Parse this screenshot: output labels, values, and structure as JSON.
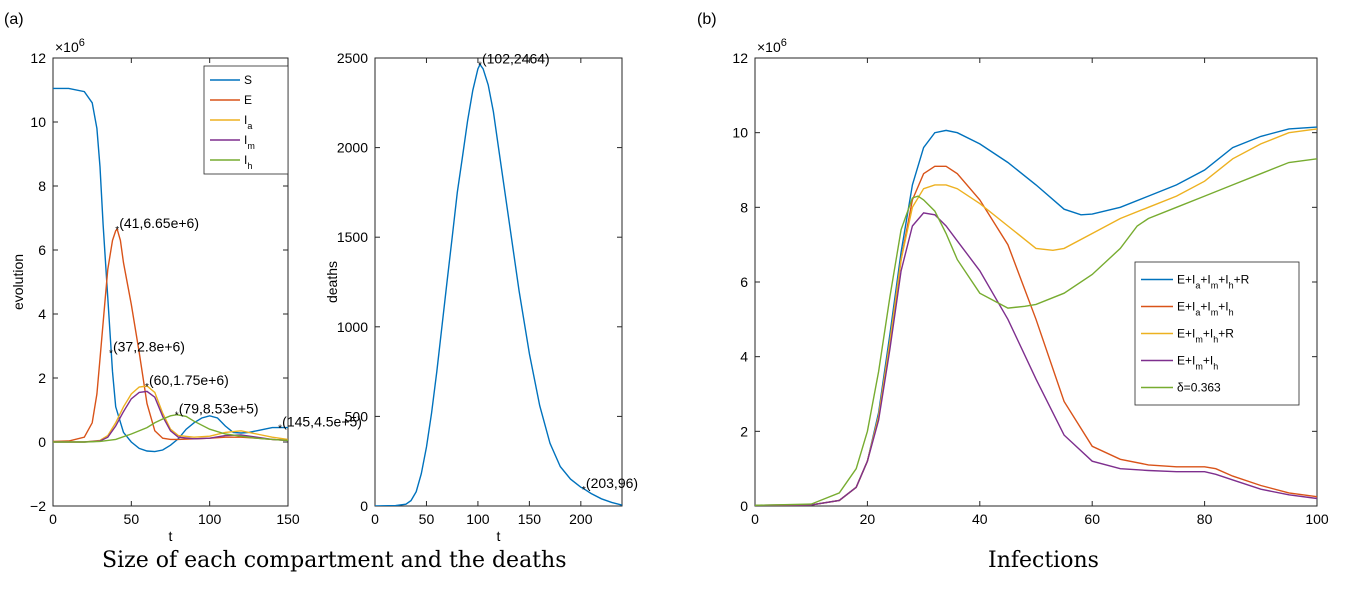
{
  "panel_labels": {
    "a": "(a)",
    "b": "(b)"
  },
  "captions": {
    "a": "Size of each compartment and the deaths",
    "b": "Infections"
  },
  "chart_data": [
    {
      "id": "compartments",
      "type": "line",
      "xlabel": "t",
      "ylabel": "evolution",
      "exponent_label": "×10",
      "exponent_power": "6",
      "xlim": [
        0,
        150
      ],
      "ylim": [
        -2,
        12
      ],
      "xticks": [
        "0",
        "50",
        "100",
        "150"
      ],
      "yticks": [
        "-2",
        "0",
        "2",
        "4",
        "6",
        "8",
        "10",
        "12"
      ],
      "legend_position": "top-right",
      "series": [
        {
          "name": "S",
          "color": "#0072BD",
          "x": [
            0,
            10,
            20,
            25,
            28,
            30,
            32,
            35,
            38,
            40,
            45,
            50,
            55,
            60,
            65,
            70,
            75,
            80,
            85,
            90,
            95,
            100,
            105,
            110,
            115,
            120,
            125,
            130,
            135,
            140,
            145,
            150
          ],
          "y": [
            11.05,
            11.05,
            10.95,
            10.6,
            9.8,
            8.6,
            6.8,
            4.5,
            2.2,
            1.1,
            0.3,
            0.0,
            -0.2,
            -0.28,
            -0.3,
            -0.25,
            -0.1,
            0.1,
            0.4,
            0.6,
            0.75,
            0.82,
            0.75,
            0.5,
            0.3,
            0.28,
            0.3,
            0.35,
            0.4,
            0.45,
            0.45,
            0.45
          ]
        },
        {
          "name": "E",
          "color": "#D95319",
          "x": [
            0,
            10,
            20,
            25,
            28,
            30,
            33,
            35,
            38,
            40,
            41,
            43,
            45,
            50,
            55,
            60,
            65,
            70,
            75,
            80,
            90,
            100,
            110,
            120,
            130,
            140,
            150
          ],
          "y": [
            0.02,
            0.03,
            0.15,
            0.6,
            1.5,
            2.6,
            4.3,
            5.4,
            6.3,
            6.6,
            6.65,
            6.3,
            5.6,
            4.3,
            2.8,
            1.2,
            0.35,
            0.12,
            0.08,
            0.08,
            0.1,
            0.12,
            0.15,
            0.15,
            0.12,
            0.08,
            0.05
          ]
        },
        {
          "name": "I_a",
          "color": "#EDB120",
          "x": [
            0,
            20,
            30,
            35,
            40,
            45,
            50,
            55,
            60,
            65,
            70,
            75,
            80,
            90,
            100,
            110,
            120,
            130,
            140,
            150
          ],
          "y": [
            0.0,
            0.0,
            0.05,
            0.2,
            0.6,
            1.1,
            1.5,
            1.72,
            1.75,
            1.55,
            0.9,
            0.4,
            0.2,
            0.15,
            0.18,
            0.3,
            0.35,
            0.25,
            0.15,
            0.08
          ]
        },
        {
          "name": "I_m",
          "color": "#7E2F8E",
          "x": [
            0,
            20,
            30,
            35,
            40,
            45,
            50,
            55,
            60,
            65,
            70,
            75,
            80,
            90,
            100,
            110,
            120,
            130,
            140,
            150
          ],
          "y": [
            0.0,
            0.0,
            0.03,
            0.15,
            0.5,
            0.95,
            1.35,
            1.55,
            1.58,
            1.4,
            0.8,
            0.35,
            0.15,
            0.1,
            0.12,
            0.2,
            0.22,
            0.15,
            0.08,
            0.05
          ]
        },
        {
          "name": "I_h",
          "color": "#77AC30",
          "x": [
            0,
            20,
            30,
            40,
            50,
            60,
            65,
            70,
            75,
            79,
            85,
            90,
            100,
            110,
            120,
            130,
            140,
            150
          ],
          "y": [
            0.0,
            0.0,
            0.02,
            0.08,
            0.25,
            0.45,
            0.6,
            0.72,
            0.82,
            0.853,
            0.8,
            0.65,
            0.4,
            0.25,
            0.18,
            0.12,
            0.08,
            0.05
          ]
        }
      ],
      "annotations": [
        {
          "text": "(41,6.65e+6)",
          "x": 41,
          "y": 6.65
        },
        {
          "text": "(37,2.8e+6)",
          "x": 37,
          "y": 2.8
        },
        {
          "text": "(60,1.75e+6)",
          "x": 60,
          "y": 1.75
        },
        {
          "text": "(79,8.53e+5)",
          "x": 79,
          "y": 0.853
        },
        {
          "text": "(145,4.5e+5)",
          "x": 145,
          "y": 0.45
        }
      ]
    },
    {
      "id": "deaths",
      "type": "line",
      "xlabel": "t",
      "ylabel": "deaths",
      "xlim": [
        0,
        240
      ],
      "ylim": [
        0,
        2500
      ],
      "xticks": [
        "0",
        "50",
        "100",
        "150",
        "200"
      ],
      "xtick_values": [
        0,
        50,
        100,
        150,
        200
      ],
      "yticks": [
        "0",
        "500",
        "1000",
        "1500",
        "2000",
        "2500"
      ],
      "series": [
        {
          "name": "",
          "color": "#0072BD",
          "x": [
            0,
            20,
            30,
            35,
            40,
            45,
            50,
            55,
            60,
            65,
            70,
            75,
            80,
            85,
            90,
            95,
            100,
            102,
            105,
            110,
            115,
            120,
            130,
            140,
            150,
            160,
            170,
            180,
            190,
            200,
            203,
            210,
            220,
            230,
            240
          ],
          "y": [
            0,
            2,
            10,
            30,
            80,
            180,
            330,
            520,
            750,
            1000,
            1250,
            1500,
            1750,
            1950,
            2150,
            2320,
            2440,
            2464,
            2440,
            2350,
            2200,
            2000,
            1600,
            1200,
            850,
            560,
            350,
            220,
            150,
            105,
            96,
            70,
            40,
            20,
            5
          ]
        }
      ],
      "annotations": [
        {
          "text": "(102,2464)",
          "x": 102,
          "y": 2464
        },
        {
          "text": "(203,96)",
          "x": 203,
          "y": 96
        }
      ]
    },
    {
      "id": "infections",
      "type": "line",
      "xlabel": "",
      "ylabel": "",
      "exponent_label": "×10",
      "exponent_power": "6",
      "xlim": [
        0,
        100
      ],
      "ylim": [
        0,
        12
      ],
      "xticks": [
        "0",
        "20",
        "40",
        "60",
        "80",
        "100"
      ],
      "yticks": [
        "0",
        "2",
        "4",
        "6",
        "8",
        "10",
        "12"
      ],
      "legend_position": "right",
      "series": [
        {
          "name": "E+I_a+I_m+I_h+R",
          "color": "#0072BD",
          "x": [
            0,
            10,
            15,
            18,
            20,
            22,
            24,
            26,
            28,
            30,
            32,
            34,
            36,
            40,
            45,
            50,
            55,
            58,
            60,
            65,
            70,
            75,
            80,
            85,
            90,
            95,
            100
          ],
          "y": [
            0.02,
            0.03,
            0.15,
            0.5,
            1.2,
            2.5,
            4.6,
            6.8,
            8.6,
            9.6,
            10.0,
            10.06,
            10.0,
            9.7,
            9.2,
            8.6,
            7.95,
            7.8,
            7.82,
            8.0,
            8.3,
            8.6,
            9.0,
            9.6,
            9.9,
            10.1,
            10.15
          ]
        },
        {
          "name": "E+I_a+I_m+I_h",
          "color": "#D95319",
          "x": [
            0,
            10,
            15,
            18,
            20,
            22,
            24,
            26,
            28,
            30,
            32,
            34,
            36,
            40,
            45,
            50,
            55,
            60,
            65,
            70,
            75,
            80,
            82,
            85,
            90,
            95,
            100
          ],
          "y": [
            0.02,
            0.03,
            0.15,
            0.5,
            1.2,
            2.4,
            4.4,
            6.6,
            8.2,
            8.9,
            9.1,
            9.1,
            8.9,
            8.2,
            7.0,
            5.0,
            2.8,
            1.6,
            1.25,
            1.1,
            1.05,
            1.05,
            1.0,
            0.8,
            0.55,
            0.35,
            0.25
          ]
        },
        {
          "name": "E+I_m+I_h+R",
          "color": "#EDB120",
          "x": [
            0,
            10,
            15,
            18,
            20,
            22,
            24,
            26,
            28,
            30,
            32,
            34,
            36,
            40,
            45,
            50,
            53,
            55,
            60,
            65,
            70,
            75,
            80,
            85,
            90,
            95,
            100
          ],
          "y": [
            0.02,
            0.03,
            0.15,
            0.5,
            1.2,
            2.4,
            4.4,
            6.6,
            8.0,
            8.5,
            8.6,
            8.6,
            8.5,
            8.1,
            7.5,
            6.9,
            6.85,
            6.9,
            7.3,
            7.7,
            8.0,
            8.3,
            8.7,
            9.3,
            9.7,
            10.0,
            10.1
          ]
        },
        {
          "name": "E+I_m+I_h",
          "color": "#7E2F8E",
          "x": [
            0,
            10,
            15,
            18,
            20,
            22,
            24,
            26,
            28,
            30,
            32,
            34,
            36,
            40,
            45,
            50,
            55,
            60,
            65,
            70,
            75,
            80,
            82,
            85,
            90,
            95,
            100
          ],
          "y": [
            0.02,
            0.03,
            0.15,
            0.5,
            1.2,
            2.3,
            4.2,
            6.3,
            7.5,
            7.85,
            7.8,
            7.5,
            7.1,
            6.3,
            5.0,
            3.4,
            1.9,
            1.2,
            1.0,
            0.95,
            0.92,
            0.92,
            0.85,
            0.7,
            0.45,
            0.3,
            0.2
          ]
        },
        {
          "name": "δ=0.363",
          "color": "#77AC30",
          "x": [
            0,
            10,
            15,
            18,
            20,
            22,
            24,
            26,
            28,
            29,
            30,
            32,
            34,
            36,
            40,
            45,
            48,
            50,
            55,
            60,
            65,
            68,
            70,
            75,
            80,
            85,
            90,
            95,
            100
          ],
          "y": [
            0.02,
            0.05,
            0.35,
            1.0,
            2.0,
            3.6,
            5.6,
            7.4,
            8.25,
            8.3,
            8.2,
            7.9,
            7.3,
            6.6,
            5.7,
            5.3,
            5.35,
            5.4,
            5.7,
            6.2,
            6.9,
            7.5,
            7.7,
            8.0,
            8.3,
            8.6,
            8.9,
            9.2,
            9.3
          ]
        }
      ]
    }
  ]
}
